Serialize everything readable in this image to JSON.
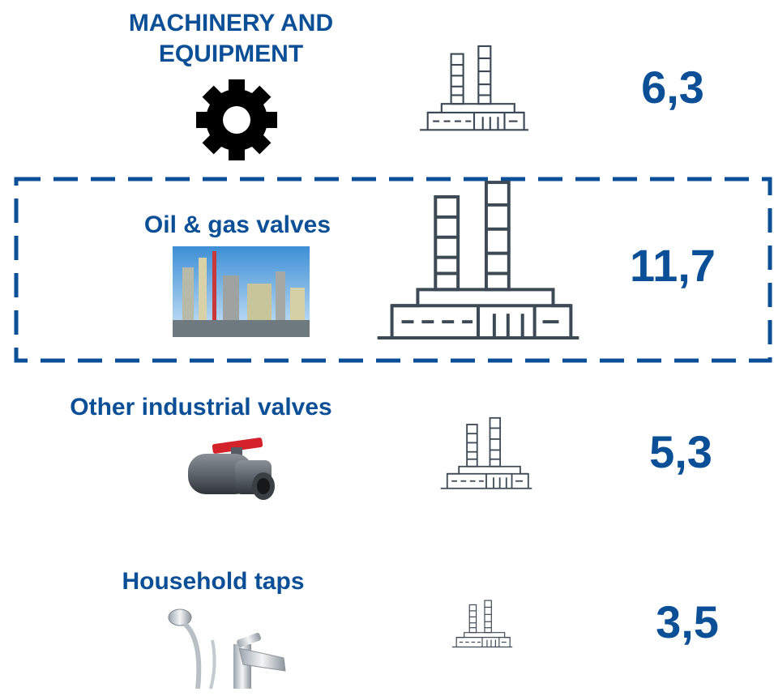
{
  "items": [
    {
      "label": [
        "MACHINERY AND",
        "EQUIPMENT"
      ],
      "value": 6.3,
      "value_label": "6,3"
    },
    {
      "label": [
        "Oil & gas valves"
      ],
      "value": 11.7,
      "value_label": "11,7"
    },
    {
      "label": [
        "Other industrial valves"
      ],
      "value": 5.3,
      "value_label": "5,3"
    },
    {
      "label": [
        "Household taps"
      ],
      "value": 3.5,
      "value_label": "3,5"
    }
  ]
}
